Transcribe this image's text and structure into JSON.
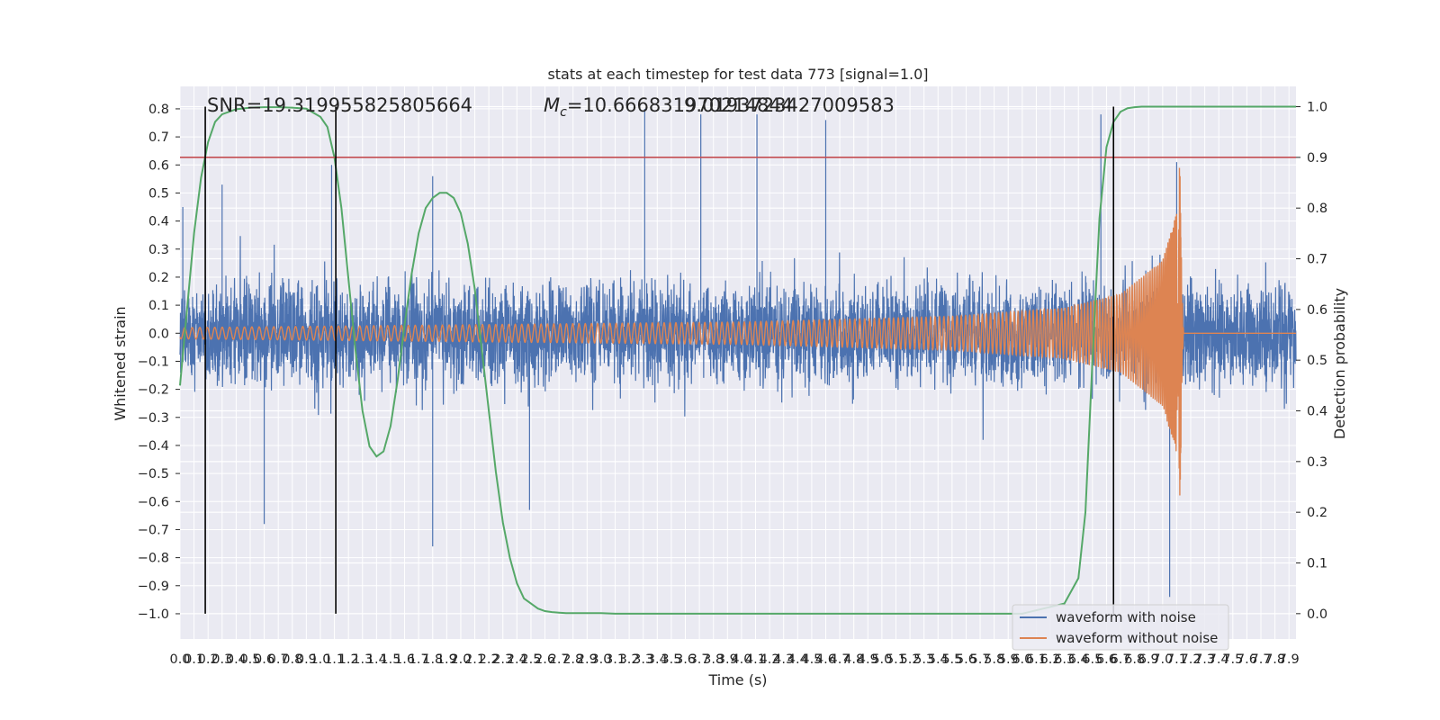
{
  "chart_data": {
    "type": "line",
    "title": "stats at each timestep for test data 773 [signal=1.0]",
    "xlabel": "Time (s)",
    "ylabel": "Whitened strain",
    "y2label": "Detection probability",
    "xlim": [
      0.0,
      7.95
    ],
    "ylim": [
      -1.09,
      0.88
    ],
    "y2lim": [
      -0.05,
      1.04
    ],
    "x_ticks": [
      "0.0",
      "0.1",
      "0.2",
      "0.3",
      "0.4",
      "0.5",
      "0.6",
      "0.7",
      "0.8",
      "0.9",
      "1.0",
      "1.1",
      "1.2",
      "1.3",
      "1.4",
      "1.5",
      "1.6",
      "1.7",
      "1.8",
      "1.9",
      "2.0",
      "2.1",
      "2.2",
      "2.3",
      "2.4",
      "2.5",
      "2.6",
      "2.7",
      "2.8",
      "2.9",
      "3.0",
      "3.1",
      "3.2",
      "3.3",
      "3.4",
      "3.5",
      "3.6",
      "3.7",
      "3.8",
      "3.9",
      "4.0",
      "4.1",
      "4.2",
      "4.3",
      "4.4",
      "4.5",
      "4.6",
      "4.7",
      "4.8",
      "4.9",
      "5.0",
      "5.1",
      "5.2",
      "5.3",
      "5.4",
      "5.5",
      "5.6",
      "5.7",
      "5.8",
      "5.9",
      "6.0",
      "6.1",
      "6.2",
      "6.3",
      "6.4",
      "6.5",
      "6.6",
      "6.7",
      "6.8",
      "6.9",
      "7.0",
      "7.1",
      "7.2",
      "7.3",
      "7.4",
      "7.5",
      "7.6",
      "7.7",
      "7.8",
      "7.9"
    ],
    "y_ticks": [
      "0.8",
      "0.7",
      "0.6",
      "0.5",
      "0.4",
      "0.3",
      "0.2",
      "0.1",
      "0.0",
      "−0.1",
      "−0.2",
      "−0.3",
      "−0.4",
      "−0.5",
      "−0.6",
      "−0.7",
      "−0.8",
      "−0.9",
      "−1.0"
    ],
    "y_tick_values": [
      0.8,
      0.7,
      0.6,
      0.5,
      0.4,
      0.3,
      0.2,
      0.1,
      0.0,
      -0.1,
      -0.2,
      -0.3,
      -0.4,
      -0.5,
      -0.6,
      -0.7,
      -0.8,
      -0.9,
      -1.0
    ],
    "y2_ticks": [
      "1.0",
      "0.9",
      "0.8",
      "0.7",
      "0.6",
      "0.5",
      "0.4",
      "0.3",
      "0.2",
      "0.1",
      "0.0"
    ],
    "y2_tick_values": [
      1.0,
      0.9,
      0.8,
      0.7,
      0.6,
      0.5,
      0.4,
      0.3,
      0.2,
      0.1,
      0.0
    ],
    "annotations": {
      "snr_text": "SNR=19.319955825805664",
      "mc_symbol": "M",
      "mc_sub": "c",
      "mc_value": "=10.666831970214844",
      "overlap_text": "9.0193723427009583"
    },
    "threshold_probability": 0.9,
    "vertical_lines_x": [
      0.18,
      1.11,
      6.65
    ],
    "series": [
      {
        "name": "waveform with noise",
        "color": "#4c72b0",
        "description_points": {
          "baseline_amplitude": 0.25,
          "peaks": [
            [
              0.02,
              0.45
            ],
            [
              0.3,
              0.53
            ],
            [
              1.08,
              0.6
            ],
            [
              1.8,
              0.56
            ],
            [
              3.31,
              0.8
            ],
            [
              3.71,
              0.78
            ],
            [
              4.11,
              0.78
            ],
            [
              4.6,
              0.76
            ],
            [
              6.56,
              0.78
            ],
            [
              7.1,
              0.61
            ],
            [
              7.05,
              -0.94
            ],
            [
              0.6,
              -0.68
            ],
            [
              1.8,
              -0.76
            ],
            [
              2.49,
              -0.63
            ]
          ]
        }
      },
      {
        "name": "waveform without noise",
        "color": "#dd8452",
        "description_points": {
          "amplitude_x": [
            0.0,
            2.0,
            4.0,
            5.5,
            6.3,
            6.7,
            7.0,
            7.1,
            7.12,
            7.15,
            7.95
          ],
          "amplitude_y": [
            0.02,
            0.03,
            0.04,
            0.06,
            0.09,
            0.14,
            0.26,
            0.43,
            -0.65,
            0.0,
            0.0
          ]
        }
      },
      {
        "name": "detection probability",
        "color": "#55a868",
        "axis": "right",
        "x": [
          0.0,
          0.05,
          0.1,
          0.15,
          0.2,
          0.25,
          0.3,
          0.35,
          0.4,
          0.5,
          0.6,
          0.7,
          0.8,
          0.9,
          1.0,
          1.05,
          1.1,
          1.15,
          1.2,
          1.25,
          1.3,
          1.35,
          1.4,
          1.45,
          1.5,
          1.55,
          1.6,
          1.65,
          1.7,
          1.75,
          1.8,
          1.85,
          1.9,
          1.95,
          2.0,
          2.05,
          2.1,
          2.15,
          2.2,
          2.25,
          2.3,
          2.35,
          2.4,
          2.45,
          2.5,
          2.55,
          2.6,
          2.65,
          2.7,
          2.75,
          2.8,
          2.85,
          2.9,
          3.0,
          3.1,
          3.2,
          3.5,
          4.0,
          5.0,
          6.0,
          6.3,
          6.4,
          6.45,
          6.5,
          6.55,
          6.6,
          6.65,
          6.7,
          6.75,
          6.8,
          6.85,
          6.9,
          7.0,
          7.5,
          7.95
        ],
        "y": [
          0.45,
          0.6,
          0.75,
          0.86,
          0.93,
          0.97,
          0.985,
          0.99,
          0.995,
          0.998,
          0.999,
          0.999,
          0.998,
          0.996,
          0.98,
          0.96,
          0.9,
          0.8,
          0.66,
          0.52,
          0.4,
          0.33,
          0.31,
          0.32,
          0.37,
          0.46,
          0.57,
          0.67,
          0.75,
          0.8,
          0.82,
          0.83,
          0.83,
          0.82,
          0.79,
          0.73,
          0.64,
          0.52,
          0.4,
          0.28,
          0.18,
          0.11,
          0.06,
          0.03,
          0.02,
          0.01,
          0.005,
          0.003,
          0.002,
          0.001,
          0.001,
          0.001,
          0.001,
          0.001,
          0.0,
          0.0,
          0.0,
          0.0,
          0.0,
          0.0,
          0.02,
          0.07,
          0.2,
          0.5,
          0.78,
          0.92,
          0.97,
          0.99,
          0.997,
          0.999,
          1.0,
          1.0,
          1.0,
          1.0,
          1.0
        ]
      }
    ],
    "legend": {
      "placement": "lower-right",
      "entries": [
        {
          "label": "waveform with noise",
          "color": "#4c72b0"
        },
        {
          "label": "waveform without noise",
          "color": "#dd8452"
        }
      ]
    },
    "style": {
      "axes_bg": "#eaeaf2",
      "grid": true,
      "grid_color": "#ffffff",
      "threshold_color": "#c44e52",
      "vline_color": "#000000"
    }
  }
}
